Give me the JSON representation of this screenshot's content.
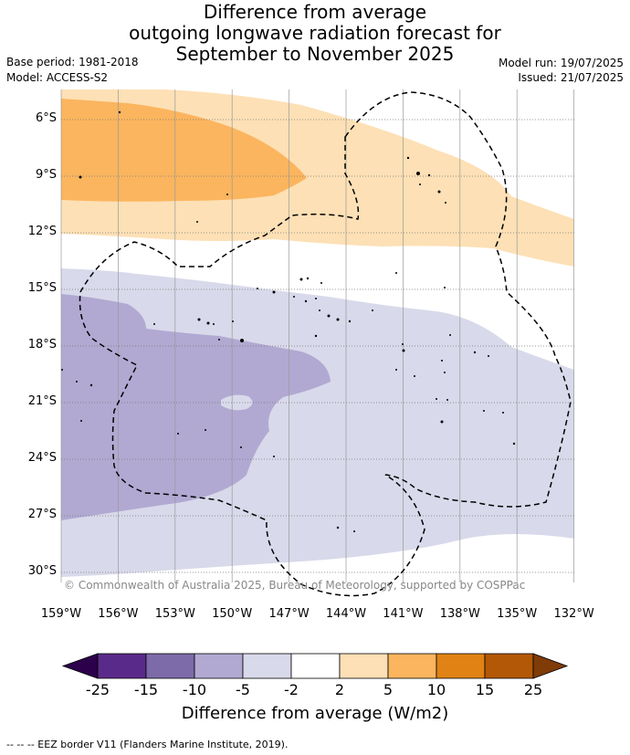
{
  "title": {
    "line1": "Difference from average",
    "line2": "outgoing longwave radiation forecast for",
    "line3": "September to November 2025"
  },
  "meta": {
    "base_period": "Base period: 1981-2018",
    "model": "Model: ACCESS-S2",
    "model_run": "Model run: 19/07/2025",
    "issued": "Issued: 21/07/2025"
  },
  "map": {
    "region": "South-west Pacific",
    "lat_labels": [
      "6°S",
      "9°S",
      "12°S",
      "15°S",
      "18°S",
      "21°S",
      "24°S",
      "27°S",
      "30°S"
    ],
    "lon_labels": [
      "159°W",
      "156°W",
      "153°W",
      "150°W",
      "147°W",
      "144°W",
      "141°W",
      "138°W",
      "135°W",
      "132°W"
    ],
    "copyright": "© Commonwealth of Australia 2025, Bureau of Meteorology, supported by COSPPac",
    "gridlines": true
  },
  "colorbar": {
    "title": "Difference from average (W/m2)",
    "ticks": [
      "-25",
      "-15",
      "-10",
      "-5",
      "-2",
      "2",
      "5",
      "10",
      "15",
      "25"
    ],
    "colors": [
      "#5a2a8a",
      "#7d6aa8",
      "#b1a9d2",
      "#d8d9ea",
      "#ffffff",
      "#fde0b5",
      "#fbb55e",
      "#e08214",
      "#b35806"
    ],
    "under_color": "#2d004b",
    "over_color": "#7f3b08"
  },
  "footer": "--  --  -- EEZ border V11 (Flanders Marine Institute, 2019)."
}
